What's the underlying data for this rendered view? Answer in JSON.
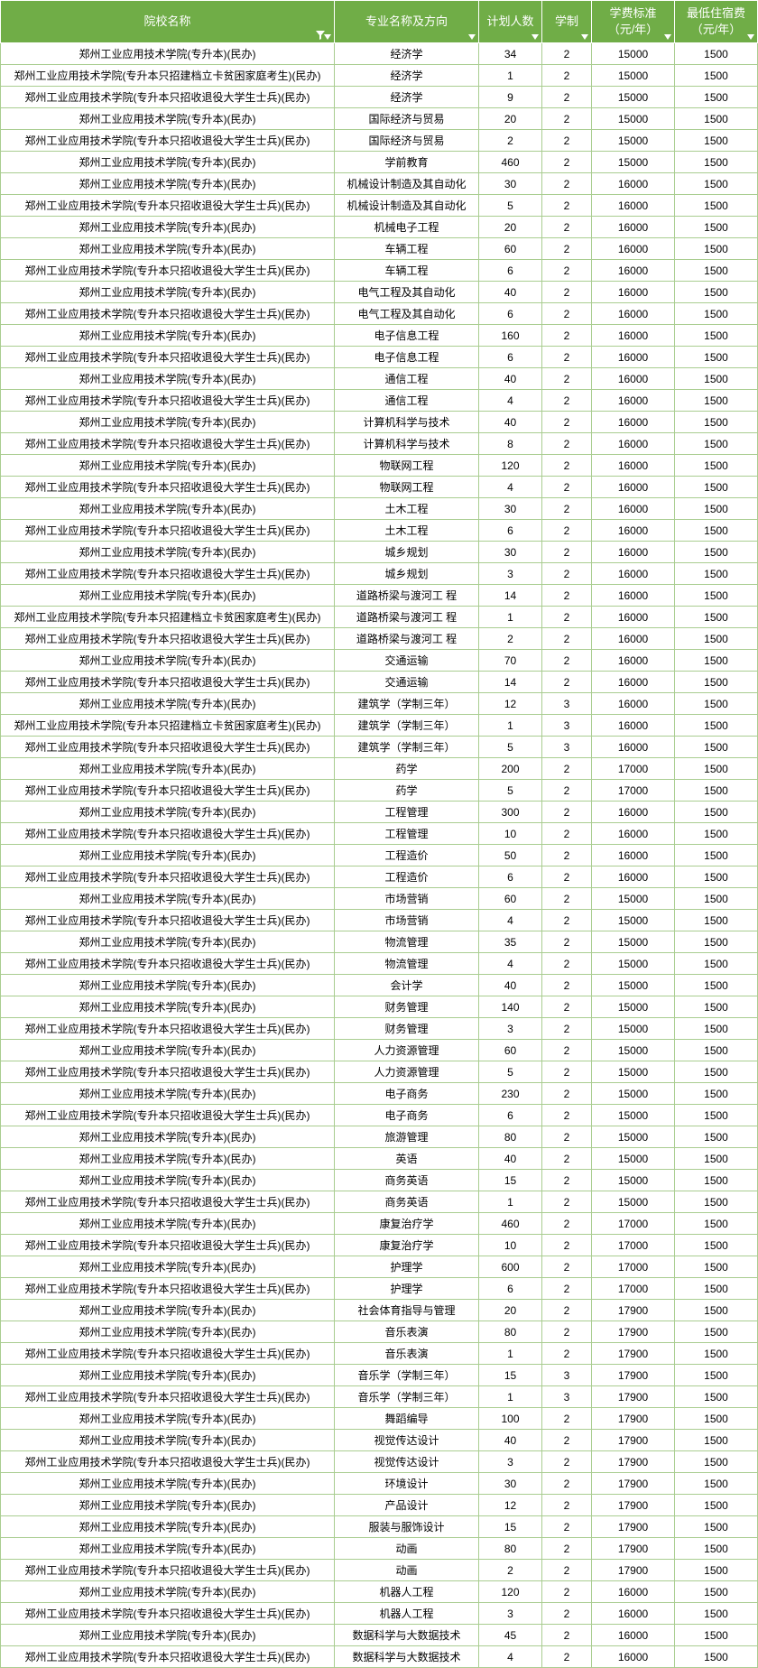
{
  "header_bg": "#70ad47",
  "header_fg": "#ffffff",
  "border_color": "#a9cd90",
  "row_bg": "#ffffff",
  "columns": [
    {
      "label": "院校名称",
      "class": "col-school",
      "filter": true
    },
    {
      "label": "专业名称及方向",
      "class": "col-major",
      "filter": false
    },
    {
      "label": "计划人数",
      "class": "col-plan",
      "filter": false
    },
    {
      "label": "学制",
      "class": "col-sys",
      "filter": false
    },
    {
      "label": "学费标准\n（元/年）",
      "class": "col-fee",
      "filter": false
    },
    {
      "label": "最低住宿费\n（元/年）",
      "class": "col-dorm",
      "filter": false
    }
  ],
  "rows": [
    [
      "郑州工业应用技术学院(专升本)(民办)",
      "经济学",
      "34",
      "2",
      "15000",
      "1500"
    ],
    [
      "郑州工业应用技术学院(专升本只招建档立卡贫困家庭考生)(民办)",
      "经济学",
      "1",
      "2",
      "15000",
      "1500"
    ],
    [
      "郑州工业应用技术学院(专升本只招收退役大学生士兵)(民办)",
      "经济学",
      "9",
      "2",
      "15000",
      "1500"
    ],
    [
      "郑州工业应用技术学院(专升本)(民办)",
      "国际经济与贸易",
      "20",
      "2",
      "15000",
      "1500"
    ],
    [
      "郑州工业应用技术学院(专升本只招收退役大学生士兵)(民办)",
      "国际经济与贸易",
      "2",
      "2",
      "15000",
      "1500"
    ],
    [
      "郑州工业应用技术学院(专升本)(民办)",
      "学前教育",
      "460",
      "2",
      "15000",
      "1500"
    ],
    [
      "郑州工业应用技术学院(专升本)(民办)",
      "机械设计制造及其自动化",
      "30",
      "2",
      "16000",
      "1500"
    ],
    [
      "郑州工业应用技术学院(专升本只招收退役大学生士兵)(民办)",
      "机械设计制造及其自动化",
      "5",
      "2",
      "16000",
      "1500"
    ],
    [
      "郑州工业应用技术学院(专升本)(民办)",
      "机械电子工程",
      "20",
      "2",
      "16000",
      "1500"
    ],
    [
      "郑州工业应用技术学院(专升本)(民办)",
      "车辆工程",
      "60",
      "2",
      "16000",
      "1500"
    ],
    [
      "郑州工业应用技术学院(专升本只招收退役大学生士兵)(民办)",
      "车辆工程",
      "6",
      "2",
      "16000",
      "1500"
    ],
    [
      "郑州工业应用技术学院(专升本)(民办)",
      "电气工程及其自动化",
      "40",
      "2",
      "16000",
      "1500"
    ],
    [
      "郑州工业应用技术学院(专升本只招收退役大学生士兵)(民办)",
      "电气工程及其自动化",
      "6",
      "2",
      "16000",
      "1500"
    ],
    [
      "郑州工业应用技术学院(专升本)(民办)",
      "电子信息工程",
      "160",
      "2",
      "16000",
      "1500"
    ],
    [
      "郑州工业应用技术学院(专升本只招收退役大学生士兵)(民办)",
      "电子信息工程",
      "6",
      "2",
      "16000",
      "1500"
    ],
    [
      "郑州工业应用技术学院(专升本)(民办)",
      "通信工程",
      "40",
      "2",
      "16000",
      "1500"
    ],
    [
      "郑州工业应用技术学院(专升本只招收退役大学生士兵)(民办)",
      "通信工程",
      "4",
      "2",
      "16000",
      "1500"
    ],
    [
      "郑州工业应用技术学院(专升本)(民办)",
      "计算机科学与技术",
      "40",
      "2",
      "16000",
      "1500"
    ],
    [
      "郑州工业应用技术学院(专升本只招收退役大学生士兵)(民办)",
      "计算机科学与技术",
      "8",
      "2",
      "16000",
      "1500"
    ],
    [
      "郑州工业应用技术学院(专升本)(民办)",
      "物联网工程",
      "120",
      "2",
      "16000",
      "1500"
    ],
    [
      "郑州工业应用技术学院(专升本只招收退役大学生士兵)(民办)",
      "物联网工程",
      "4",
      "2",
      "16000",
      "1500"
    ],
    [
      "郑州工业应用技术学院(专升本)(民办)",
      "土木工程",
      "30",
      "2",
      "16000",
      "1500"
    ],
    [
      "郑州工业应用技术学院(专升本只招收退役大学生士兵)(民办)",
      "土木工程",
      "6",
      "2",
      "16000",
      "1500"
    ],
    [
      "郑州工业应用技术学院(专升本)(民办)",
      "城乡规划",
      "30",
      "2",
      "16000",
      "1500"
    ],
    [
      "郑州工业应用技术学院(专升本只招收退役大学生士兵)(民办)",
      "城乡规划",
      "3",
      "2",
      "16000",
      "1500"
    ],
    [
      "郑州工业应用技术学院(专升本)(民办)",
      "道路桥梁与渡河工 程",
      "14",
      "2",
      "16000",
      "1500"
    ],
    [
      "郑州工业应用技术学院(专升本只招建档立卡贫困家庭考生)(民办)",
      "道路桥梁与渡河工 程",
      "1",
      "2",
      "16000",
      "1500"
    ],
    [
      "郑州工业应用技术学院(专升本只招收退役大学生士兵)(民办)",
      "道路桥梁与渡河工 程",
      "2",
      "2",
      "16000",
      "1500"
    ],
    [
      "郑州工业应用技术学院(专升本)(民办)",
      "交通运输",
      "70",
      "2",
      "16000",
      "1500"
    ],
    [
      "郑州工业应用技术学院(专升本只招收退役大学生士兵)(民办)",
      "交通运输",
      "14",
      "2",
      "16000",
      "1500"
    ],
    [
      "郑州工业应用技术学院(专升本)(民办)",
      "建筑学（学制三年）",
      "12",
      "3",
      "16000",
      "1500"
    ],
    [
      "郑州工业应用技术学院(专升本只招建档立卡贫困家庭考生)(民办)",
      "建筑学（学制三年）",
      "1",
      "3",
      "16000",
      "1500"
    ],
    [
      "郑州工业应用技术学院(专升本只招收退役大学生士兵)(民办)",
      "建筑学（学制三年）",
      "5",
      "3",
      "16000",
      "1500"
    ],
    [
      "郑州工业应用技术学院(专升本)(民办)",
      "药学",
      "200",
      "2",
      "17000",
      "1500"
    ],
    [
      "郑州工业应用技术学院(专升本只招收退役大学生士兵)(民办)",
      "药学",
      "5",
      "2",
      "17000",
      "1500"
    ],
    [
      "郑州工业应用技术学院(专升本)(民办)",
      "工程管理",
      "300",
      "2",
      "16000",
      "1500"
    ],
    [
      "郑州工业应用技术学院(专升本只招收退役大学生士兵)(民办)",
      "工程管理",
      "10",
      "2",
      "16000",
      "1500"
    ],
    [
      "郑州工业应用技术学院(专升本)(民办)",
      "工程造价",
      "50",
      "2",
      "16000",
      "1500"
    ],
    [
      "郑州工业应用技术学院(专升本只招收退役大学生士兵)(民办)",
      "工程造价",
      "6",
      "2",
      "16000",
      "1500"
    ],
    [
      "郑州工业应用技术学院(专升本)(民办)",
      "市场营销",
      "60",
      "2",
      "15000",
      "1500"
    ],
    [
      "郑州工业应用技术学院(专升本只招收退役大学生士兵)(民办)",
      "市场营销",
      "4",
      "2",
      "15000",
      "1500"
    ],
    [
      "郑州工业应用技术学院(专升本)(民办)",
      "物流管理",
      "35",
      "2",
      "15000",
      "1500"
    ],
    [
      "郑州工业应用技术学院(专升本只招收退役大学生士兵)(民办)",
      "物流管理",
      "4",
      "2",
      "15000",
      "1500"
    ],
    [
      "郑州工业应用技术学院(专升本)(民办)",
      "会计学",
      "40",
      "2",
      "15000",
      "1500"
    ],
    [
      "郑州工业应用技术学院(专升本)(民办)",
      "财务管理",
      "140",
      "2",
      "15000",
      "1500"
    ],
    [
      "郑州工业应用技术学院(专升本只招收退役大学生士兵)(民办)",
      "财务管理",
      "3",
      "2",
      "15000",
      "1500"
    ],
    [
      "郑州工业应用技术学院(专升本)(民办)",
      "人力资源管理",
      "60",
      "2",
      "15000",
      "1500"
    ],
    [
      "郑州工业应用技术学院(专升本只招收退役大学生士兵)(民办)",
      "人力资源管理",
      "5",
      "2",
      "15000",
      "1500"
    ],
    [
      "郑州工业应用技术学院(专升本)(民办)",
      "电子商务",
      "230",
      "2",
      "15000",
      "1500"
    ],
    [
      "郑州工业应用技术学院(专升本只招收退役大学生士兵)(民办)",
      "电子商务",
      "6",
      "2",
      "15000",
      "1500"
    ],
    [
      "郑州工业应用技术学院(专升本)(民办)",
      "旅游管理",
      "80",
      "2",
      "15000",
      "1500"
    ],
    [
      "郑州工业应用技术学院(专升本)(民办)",
      "英语",
      "40",
      "2",
      "15000",
      "1500"
    ],
    [
      "郑州工业应用技术学院(专升本)(民办)",
      "商务英语",
      "15",
      "2",
      "15000",
      "1500"
    ],
    [
      "郑州工业应用技术学院(专升本只招收退役大学生士兵)(民办)",
      "商务英语",
      "1",
      "2",
      "15000",
      "1500"
    ],
    [
      "郑州工业应用技术学院(专升本)(民办)",
      "康复治疗学",
      "460",
      "2",
      "17000",
      "1500"
    ],
    [
      "郑州工业应用技术学院(专升本只招收退役大学生士兵)(民办)",
      "康复治疗学",
      "10",
      "2",
      "17000",
      "1500"
    ],
    [
      "郑州工业应用技术学院(专升本)(民办)",
      "护理学",
      "600",
      "2",
      "17000",
      "1500"
    ],
    [
      "郑州工业应用技术学院(专升本只招收退役大学生士兵)(民办)",
      "护理学",
      "6",
      "2",
      "17000",
      "1500"
    ],
    [
      "郑州工业应用技术学院(专升本)(民办)",
      "社会体育指导与管理",
      "20",
      "2",
      "17900",
      "1500"
    ],
    [
      "郑州工业应用技术学院(专升本)(民办)",
      "音乐表演",
      "80",
      "2",
      "17900",
      "1500"
    ],
    [
      "郑州工业应用技术学院(专升本只招收退役大学生士兵)(民办)",
      "音乐表演",
      "1",
      "2",
      "17900",
      "1500"
    ],
    [
      "郑州工业应用技术学院(专升本)(民办)",
      "音乐学（学制三年）",
      "15",
      "3",
      "17900",
      "1500"
    ],
    [
      "郑州工业应用技术学院(专升本只招收退役大学生士兵)(民办)",
      "音乐学（学制三年）",
      "1",
      "3",
      "17900",
      "1500"
    ],
    [
      "郑州工业应用技术学院(专升本)(民办)",
      "舞蹈编导",
      "100",
      "2",
      "17900",
      "1500"
    ],
    [
      "郑州工业应用技术学院(专升本)(民办)",
      "视觉传达设计",
      "40",
      "2",
      "17900",
      "1500"
    ],
    [
      "郑州工业应用技术学院(专升本只招收退役大学生士兵)(民办)",
      "视觉传达设计",
      "3",
      "2",
      "17900",
      "1500"
    ],
    [
      "郑州工业应用技术学院(专升本)(民办)",
      "环境设计",
      "30",
      "2",
      "17900",
      "1500"
    ],
    [
      "郑州工业应用技术学院(专升本)(民办)",
      "产品设计",
      "12",
      "2",
      "17900",
      "1500"
    ],
    [
      "郑州工业应用技术学院(专升本)(民办)",
      "服装与服饰设计",
      "15",
      "2",
      "17900",
      "1500"
    ],
    [
      "郑州工业应用技术学院(专升本)(民办)",
      "动画",
      "80",
      "2",
      "17900",
      "1500"
    ],
    [
      "郑州工业应用技术学院(专升本只招收退役大学生士兵)(民办)",
      "动画",
      "2",
      "2",
      "17900",
      "1500"
    ],
    [
      "郑州工业应用技术学院(专升本)(民办)",
      "机器人工程",
      "120",
      "2",
      "16000",
      "1500"
    ],
    [
      "郑州工业应用技术学院(专升本只招收退役大学生士兵)(民办)",
      "机器人工程",
      "3",
      "2",
      "16000",
      "1500"
    ],
    [
      "郑州工业应用技术学院(专升本)(民办)",
      "数据科学与大数据技术",
      "45",
      "2",
      "16000",
      "1500"
    ],
    [
      "郑州工业应用技术学院(专升本只招收退役大学生士兵)(民办)",
      "数据科学与大数据技术",
      "4",
      "2",
      "16000",
      "1500"
    ]
  ]
}
